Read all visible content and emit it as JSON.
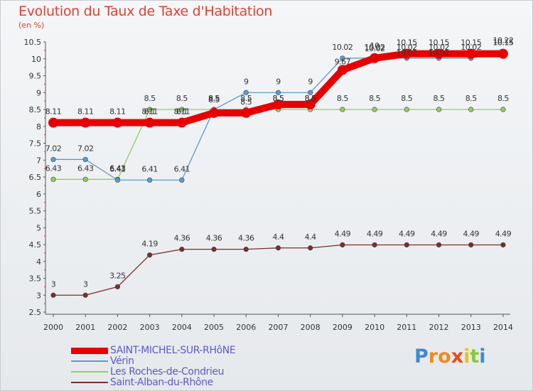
{
  "chart_data": {
    "type": "line",
    "title": "Evolution du Taux de Taxe d'Habitation",
    "subtitle": "(en %)",
    "x": [
      "2000",
      "2001",
      "2002",
      "2003",
      "2004",
      "2005",
      "2006",
      "2007",
      "2008",
      "2009",
      "2010",
      "2011",
      "2012",
      "2013",
      "2014"
    ],
    "ylim": [
      2.5,
      10.5
    ],
    "yticks": [
      "2.5",
      "3",
      "3.5",
      "4",
      "4.5",
      "5",
      "5.5",
      "6",
      "6.5",
      "7",
      "7.5",
      "8",
      "8.5",
      "9",
      "9.5",
      "10",
      "10.5"
    ],
    "grid": false,
    "legend_position": "bottom-left",
    "series": [
      {
        "name": "SAINT-MICHEL-SUR-RHôNE",
        "color": "#e80000",
        "style": "thick",
        "values": [
          8.11,
          8.11,
          8.11,
          8.11,
          8.11,
          8.4,
          8.4,
          8.65,
          8.65,
          9.67,
          10.02,
          10.15,
          10.15,
          10.15,
          10.15
        ],
        "labels": [
          "8.11",
          "8.11",
          "8.11",
          "8.11",
          "8.11",
          "",
          "",
          "",
          "",
          "",
          "",
          "10.15",
          "10.15",
          "10.15",
          "10.15"
        ]
      },
      {
        "name": "Vérin",
        "color": "#5a9bd0",
        "style": "thin",
        "values": [
          7.02,
          7.02,
          6.41,
          6.41,
          6.41,
          8.5,
          9,
          9,
          9,
          10.02,
          10.02,
          10.02,
          10.02,
          10.02,
          10.22
        ],
        "labels": [
          "7.02",
          "7.02",
          "6.41",
          "6.41",
          "6.41",
          "8.5",
          "9",
          "9",
          "9",
          "10.02",
          "10.02",
          "10.02",
          "10.02",
          "10.02",
          "10.22"
        ]
      },
      {
        "name": "Les Roches-de-Condrieu",
        "color": "#8ed05a",
        "style": "thin",
        "values": [
          6.43,
          6.43,
          6.43,
          8.5,
          8.5,
          8.5,
          8.5,
          8.5,
          8.5,
          8.5,
          8.5,
          8.5,
          8.5,
          8.5,
          8.5
        ],
        "labels": [
          "6.43",
          "6.43",
          "6.43",
          "8.5",
          "8.5",
          "8.5",
          "8.5",
          "8.5",
          "8.5",
          "8.5",
          "8.5",
          "8.5",
          "8.5",
          "8.5",
          "8.5"
        ]
      },
      {
        "name": "Saint-Alban-du-Rhône",
        "color": "#7a2e2e",
        "style": "thin",
        "values": [
          3,
          3,
          3.25,
          4.19,
          4.36,
          4.36,
          4.36,
          4.4,
          4.4,
          4.49,
          4.49,
          4.49,
          4.49,
          4.49,
          4.49
        ],
        "labels": [
          "3",
          "3",
          "3.25",
          "4.19",
          "4.36",
          "4.36",
          "4.36",
          "4.4",
          "4.4",
          "4.49",
          "4.49",
          "4.49",
          "4.49",
          "4.49",
          "4.49"
        ]
      }
    ],
    "hidden_labels_note": ""
  },
  "extra_labels": [
    "8.1",
    "8.1",
    "8.5",
    "8.5",
    "8.5",
    "8.5",
    "9.67",
    "10",
    "10.02",
    "10.02",
    "10.02",
    "10.15"
  ],
  "logo": {
    "letters": [
      "P",
      "r",
      "o",
      "x",
      "i",
      "t",
      "i"
    ],
    "colors": [
      "#3b8ad8",
      "#f08a1e",
      "#f08a1e",
      "#e84a1e",
      "#e8c21e",
      "#8ac83a",
      "#3b8ad8"
    ]
  }
}
